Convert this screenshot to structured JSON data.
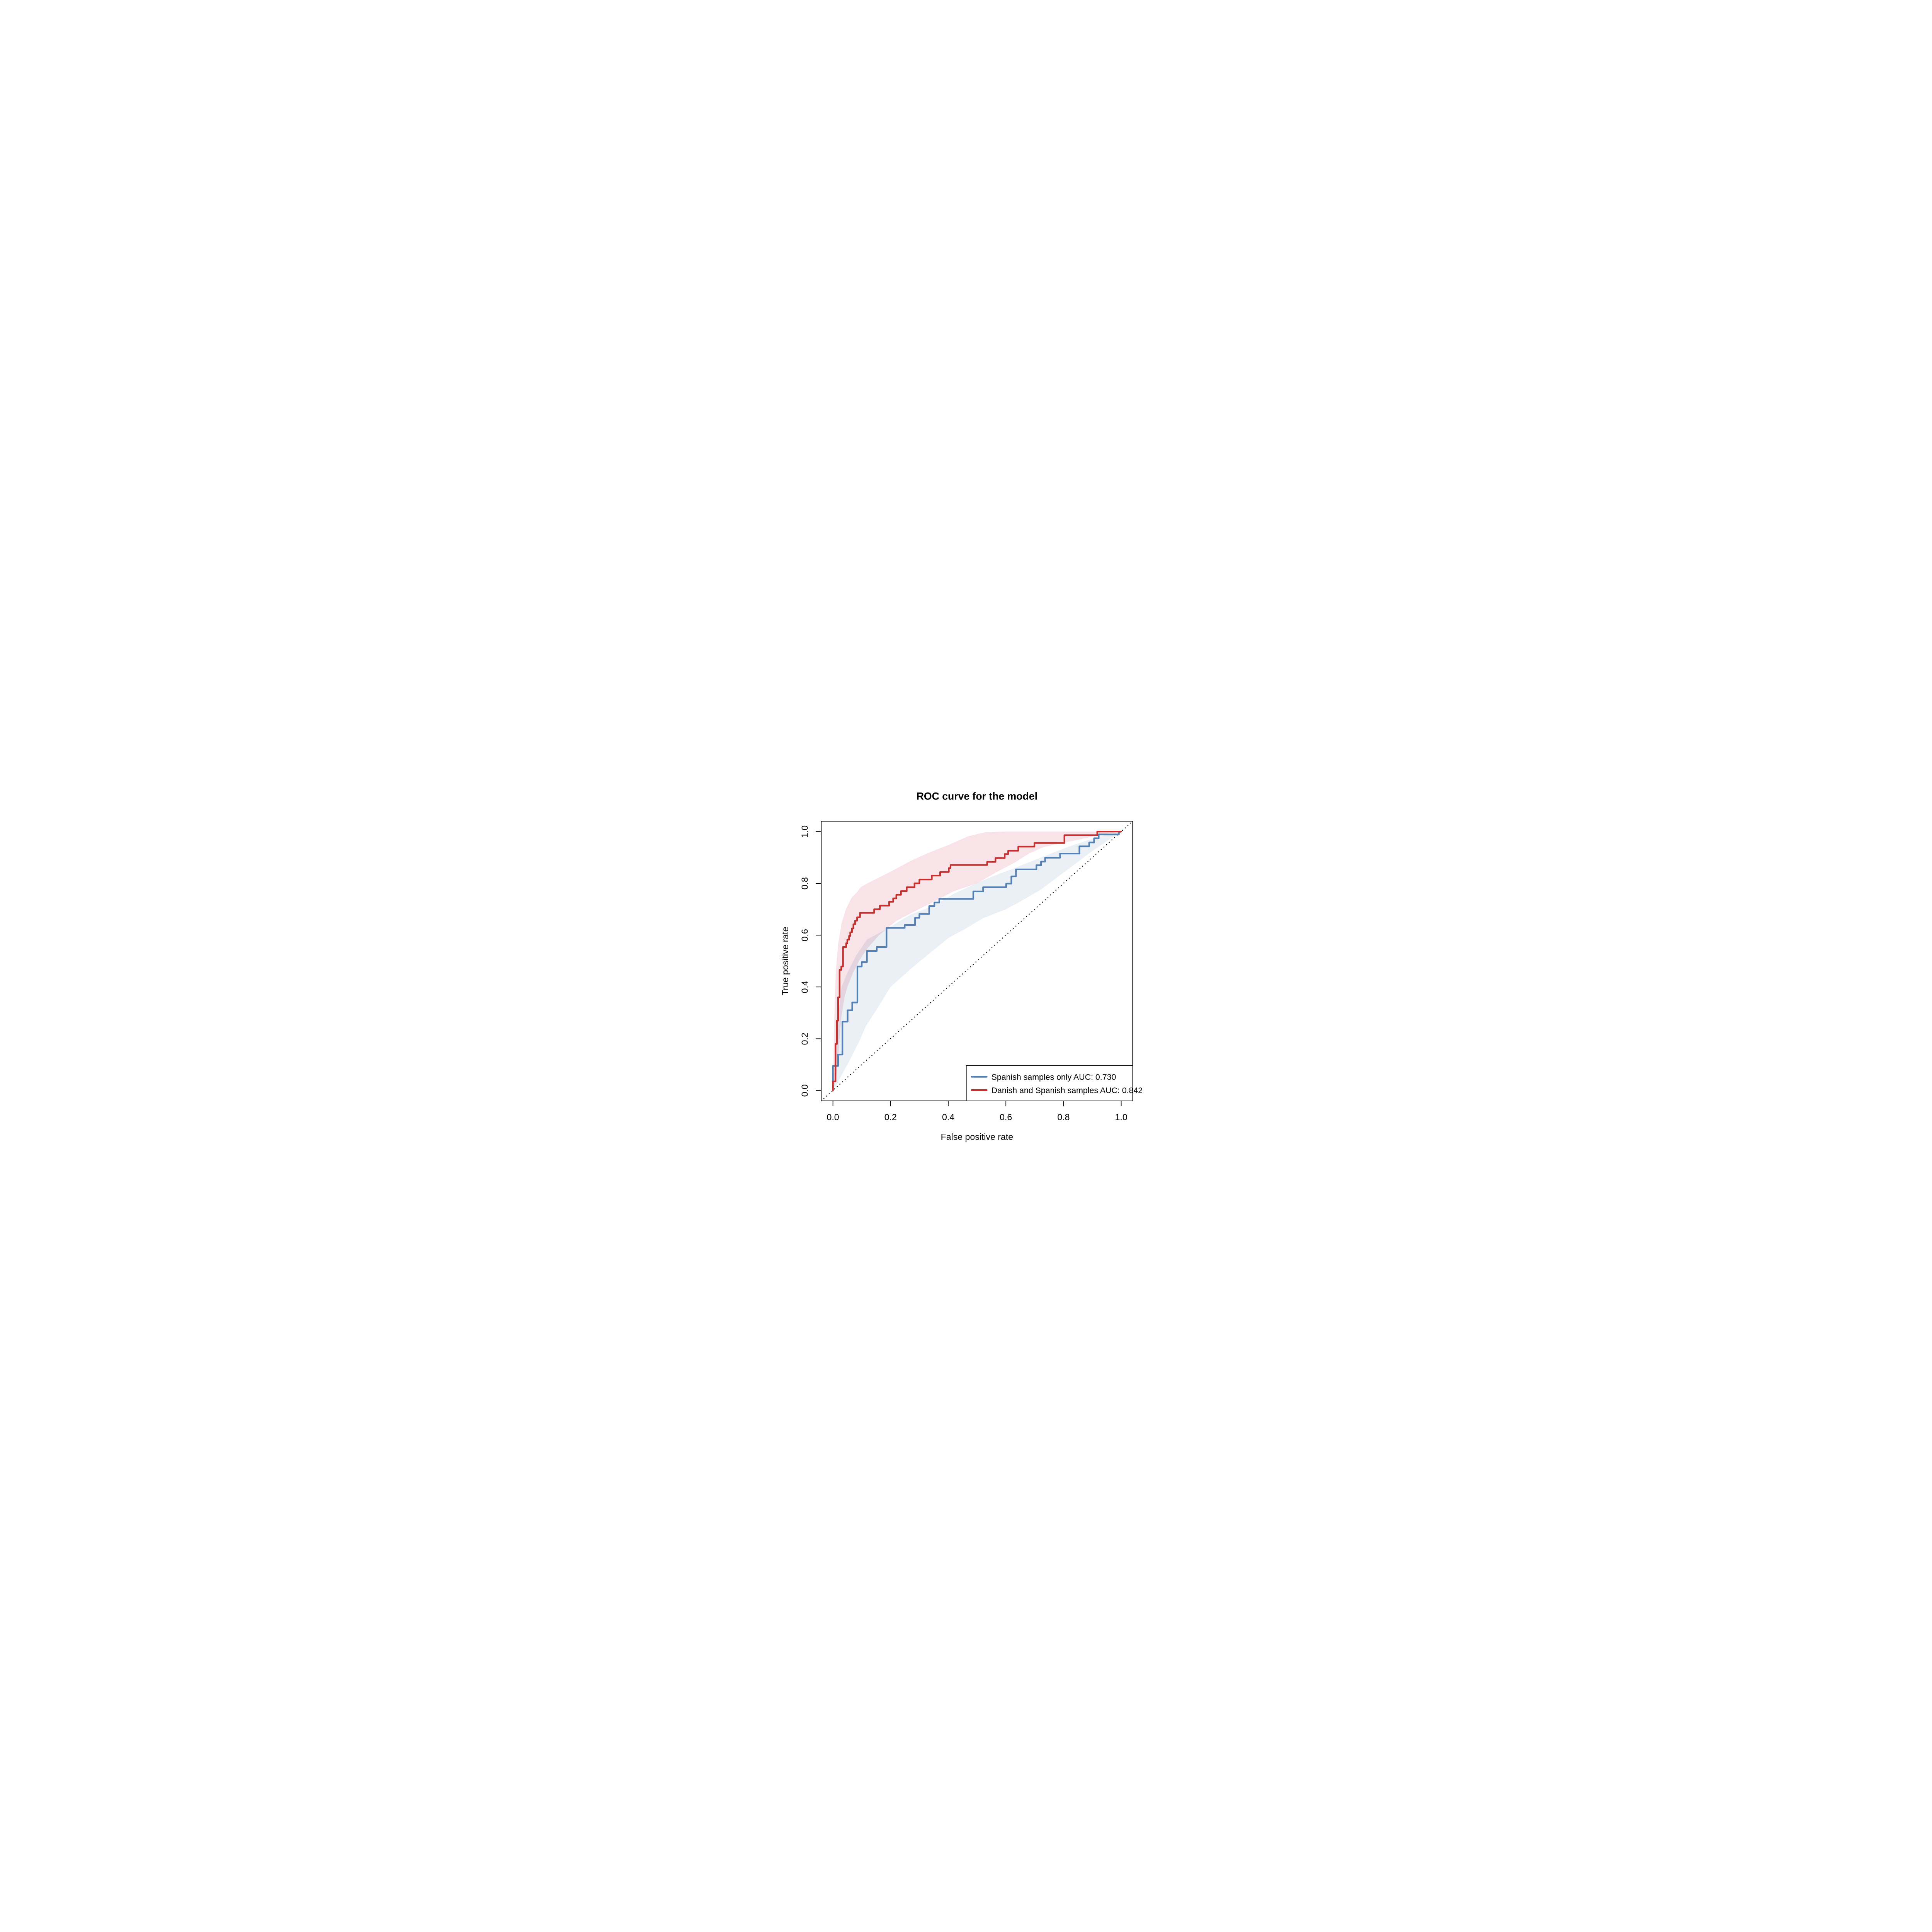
{
  "chart_data": {
    "type": "line",
    "subtype": "roc-step-curves-with-confidence-bands",
    "title": "ROC curve for the model",
    "xlabel": "False positive rate",
    "ylabel": "True positive rate",
    "xlim": [
      0,
      1
    ],
    "ylim": [
      0,
      1
    ],
    "grid": false,
    "diagonal_reference_line": true,
    "legend_position": "bottomright",
    "x_ticks": [
      {
        "label": "0.0",
        "value": 0.0
      },
      {
        "label": "0.2",
        "value": 0.2
      },
      {
        "label": "0.4",
        "value": 0.4
      },
      {
        "label": "0.6",
        "value": 0.6
      },
      {
        "label": "0.8",
        "value": 0.8
      },
      {
        "label": "1.0",
        "value": 1.0
      }
    ],
    "y_ticks": [
      {
        "label": "0.0",
        "value": 0.0
      },
      {
        "label": "0.2",
        "value": 0.2
      },
      {
        "label": "0.4",
        "value": 0.4
      },
      {
        "label": "0.6",
        "value": 0.6
      },
      {
        "label": "0.8",
        "value": 0.8
      },
      {
        "label": "1.0",
        "value": 1.0
      }
    ],
    "colors": {
      "axis": "#000000",
      "diagonal": "#000000",
      "background": "#ffffff",
      "blue_line": "#5580b4",
      "red_line": "#c5302f",
      "blue_band": "#ebeff6",
      "red_band": "#f8e3e8"
    },
    "series": [
      {
        "name": "Spanish samples only",
        "auc": 0.73,
        "legend_label": "Spanish samples only AUC: 0.730",
        "color": "#5580b4",
        "band_color": "#ebeff6",
        "steps": [
          [
            0,
            0
          ],
          [
            0,
            0.095
          ],
          [
            0.018,
            0.095
          ],
          [
            0.018,
            0.139
          ],
          [
            0.033,
            0.139
          ],
          [
            0.033,
            0.266
          ],
          [
            0.051,
            0.266
          ],
          [
            0.051,
            0.31
          ],
          [
            0.067,
            0.31
          ],
          [
            0.067,
            0.34
          ],
          [
            0.085,
            0.34
          ],
          [
            0.085,
            0.479
          ],
          [
            0.1,
            0.479
          ],
          [
            0.1,
            0.496
          ],
          [
            0.118,
            0.496
          ],
          [
            0.118,
            0.539
          ],
          [
            0.152,
            0.539
          ],
          [
            0.152,
            0.554
          ],
          [
            0.186,
            0.554
          ],
          [
            0.186,
            0.628
          ],
          [
            0.249,
            0.628
          ],
          [
            0.249,
            0.639
          ],
          [
            0.285,
            0.639
          ],
          [
            0.285,
            0.667
          ],
          [
            0.3,
            0.667
          ],
          [
            0.3,
            0.682
          ],
          [
            0.334,
            0.682
          ],
          [
            0.334,
            0.712
          ],
          [
            0.352,
            0.712
          ],
          [
            0.352,
            0.726
          ],
          [
            0.369,
            0.726
          ],
          [
            0.369,
            0.74
          ],
          [
            0.487,
            0.74
          ],
          [
            0.487,
            0.769
          ],
          [
            0.521,
            0.769
          ],
          [
            0.521,
            0.785
          ],
          [
            0.601,
            0.785
          ],
          [
            0.601,
            0.799
          ],
          [
            0.619,
            0.799
          ],
          [
            0.619,
            0.827
          ],
          [
            0.635,
            0.827
          ],
          [
            0.635,
            0.854
          ],
          [
            0.706,
            0.854
          ],
          [
            0.706,
            0.87
          ],
          [
            0.722,
            0.87
          ],
          [
            0.722,
            0.884
          ],
          [
            0.736,
            0.884
          ],
          [
            0.736,
            0.899
          ],
          [
            0.788,
            0.899
          ],
          [
            0.788,
            0.915
          ],
          [
            0.855,
            0.915
          ],
          [
            0.855,
            0.943
          ],
          [
            0.889,
            0.943
          ],
          [
            0.889,
            0.958
          ],
          [
            0.906,
            0.958
          ],
          [
            0.906,
            0.974
          ],
          [
            0.922,
            0.974
          ],
          [
            0.922,
            0.989
          ],
          [
            0.992,
            0.989
          ],
          [
            0.992,
            1
          ],
          [
            1,
            1
          ]
        ],
        "band": [
          [
            0,
            0
          ],
          [
            0.004,
            0.08
          ],
          [
            0.012,
            0.2
          ],
          [
            0.02,
            0.3
          ],
          [
            0.03,
            0.4
          ],
          [
            0.05,
            0.455
          ],
          [
            0.08,
            0.52
          ],
          [
            0.118,
            0.583
          ],
          [
            0.18,
            0.62
          ],
          [
            0.27,
            0.68
          ],
          [
            0.343,
            0.711
          ],
          [
            0.42,
            0.76
          ],
          [
            0.487,
            0.795
          ],
          [
            0.55,
            0.825
          ],
          [
            0.62,
            0.855
          ],
          [
            0.7,
            0.89
          ],
          [
            0.813,
            0.94
          ],
          [
            0.88,
            0.965
          ],
          [
            0.94,
            0.985
          ],
          [
            1,
            1
          ],
          [
            0.96,
            0.97
          ],
          [
            0.9,
            0.925
          ],
          [
            0.84,
            0.875
          ],
          [
            0.78,
            0.825
          ],
          [
            0.72,
            0.775
          ],
          [
            0.65,
            0.73
          ],
          [
            0.6,
            0.7
          ],
          [
            0.52,
            0.665
          ],
          [
            0.46,
            0.625
          ],
          [
            0.4,
            0.589
          ],
          [
            0.33,
            0.525
          ],
          [
            0.27,
            0.47
          ],
          [
            0.2,
            0.4
          ],
          [
            0.15,
            0.31
          ],
          [
            0.115,
            0.25
          ],
          [
            0.09,
            0.187
          ],
          [
            0.06,
            0.12
          ],
          [
            0.03,
            0.06
          ],
          [
            0.012,
            0.02
          ],
          [
            0,
            0
          ]
        ]
      },
      {
        "name": "Danish and Spanish samples",
        "auc": 0.842,
        "legend_label": "Danish and Spanish samples AUC: 0.842",
        "color": "#c5302f",
        "band_color": "#f8e3e8",
        "steps": [
          [
            0,
            0
          ],
          [
            0,
            0.035
          ],
          [
            0.009,
            0.035
          ],
          [
            0.009,
            0.18
          ],
          [
            0.014,
            0.18
          ],
          [
            0.014,
            0.27
          ],
          [
            0.018,
            0.27
          ],
          [
            0.018,
            0.36
          ],
          [
            0.023,
            0.36
          ],
          [
            0.023,
            0.466
          ],
          [
            0.029,
            0.466
          ],
          [
            0.029,
            0.479
          ],
          [
            0.035,
            0.479
          ],
          [
            0.035,
            0.554
          ],
          [
            0.046,
            0.554
          ],
          [
            0.046,
            0.569
          ],
          [
            0.05,
            0.569
          ],
          [
            0.05,
            0.583
          ],
          [
            0.056,
            0.583
          ],
          [
            0.056,
            0.597
          ],
          [
            0.06,
            0.597
          ],
          [
            0.06,
            0.611
          ],
          [
            0.066,
            0.611
          ],
          [
            0.066,
            0.626
          ],
          [
            0.071,
            0.626
          ],
          [
            0.071,
            0.642
          ],
          [
            0.077,
            0.642
          ],
          [
            0.077,
            0.656
          ],
          [
            0.084,
            0.656
          ],
          [
            0.084,
            0.669
          ],
          [
            0.094,
            0.669
          ],
          [
            0.094,
            0.686
          ],
          [
            0.143,
            0.686
          ],
          [
            0.143,
            0.7
          ],
          [
            0.163,
            0.7
          ],
          [
            0.163,
            0.714
          ],
          [
            0.195,
            0.714
          ],
          [
            0.195,
            0.729
          ],
          [
            0.209,
            0.729
          ],
          [
            0.209,
            0.742
          ],
          [
            0.22,
            0.742
          ],
          [
            0.22,
            0.756
          ],
          [
            0.236,
            0.756
          ],
          [
            0.236,
            0.77
          ],
          [
            0.256,
            0.77
          ],
          [
            0.256,
            0.785
          ],
          [
            0.283,
            0.785
          ],
          [
            0.283,
            0.8
          ],
          [
            0.3,
            0.8
          ],
          [
            0.3,
            0.815
          ],
          [
            0.343,
            0.815
          ],
          [
            0.343,
            0.83
          ],
          [
            0.372,
            0.83
          ],
          [
            0.372,
            0.844
          ],
          [
            0.402,
            0.844
          ],
          [
            0.402,
            0.859
          ],
          [
            0.408,
            0.859
          ],
          [
            0.408,
            0.871
          ],
          [
            0.535,
            0.871
          ],
          [
            0.535,
            0.883
          ],
          [
            0.564,
            0.883
          ],
          [
            0.564,
            0.898
          ],
          [
            0.596,
            0.898
          ],
          [
            0.596,
            0.913
          ],
          [
            0.608,
            0.913
          ],
          [
            0.608,
            0.926
          ],
          [
            0.643,
            0.926
          ],
          [
            0.643,
            0.942
          ],
          [
            0.699,
            0.942
          ],
          [
            0.699,
            0.956
          ],
          [
            0.803,
            0.956
          ],
          [
            0.803,
            0.986
          ],
          [
            0.917,
            0.986
          ],
          [
            0.917,
            1
          ],
          [
            1,
            1
          ]
        ],
        "band": [
          [
            0,
            0
          ],
          [
            0.003,
            0.18
          ],
          [
            0.006,
            0.33
          ],
          [
            0.01,
            0.46
          ],
          [
            0.018,
            0.565
          ],
          [
            0.03,
            0.645
          ],
          [
            0.045,
            0.7
          ],
          [
            0.065,
            0.745
          ],
          [
            0.085,
            0.768
          ],
          [
            0.097,
            0.786
          ],
          [
            0.13,
            0.806
          ],
          [
            0.155,
            0.82
          ],
          [
            0.2,
            0.845
          ],
          [
            0.27,
            0.887
          ],
          [
            0.33,
            0.917
          ],
          [
            0.4,
            0.948
          ],
          [
            0.47,
            0.982
          ],
          [
            0.53,
            0.998
          ],
          [
            0.6,
            1
          ],
          [
            1,
            1
          ],
          [
            0.95,
            0.992
          ],
          [
            0.917,
            0.985
          ],
          [
            0.85,
            0.968
          ],
          [
            0.78,
            0.952
          ],
          [
            0.73,
            0.94
          ],
          [
            0.68,
            0.915
          ],
          [
            0.63,
            0.88
          ],
          [
            0.57,
            0.845
          ],
          [
            0.5,
            0.8
          ],
          [
            0.42,
            0.77
          ],
          [
            0.34,
            0.724
          ],
          [
            0.28,
            0.69
          ],
          [
            0.22,
            0.655
          ],
          [
            0.16,
            0.6
          ],
          [
            0.12,
            0.55
          ],
          [
            0.09,
            0.5
          ],
          [
            0.07,
            0.455
          ],
          [
            0.05,
            0.4
          ],
          [
            0.04,
            0.36
          ],
          [
            0.03,
            0.29
          ],
          [
            0.025,
            0.23
          ],
          [
            0.02,
            0.15
          ],
          [
            0.012,
            0.06
          ],
          [
            0.005,
            0.02
          ],
          [
            0,
            0
          ]
        ]
      }
    ]
  }
}
